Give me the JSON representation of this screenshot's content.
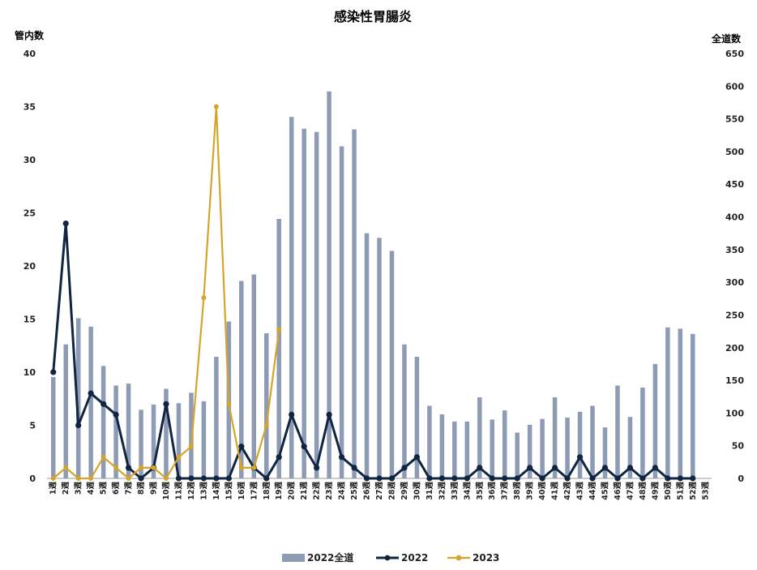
{
  "chart_data": {
    "type": "bar+line",
    "title": "感染性胃腸炎",
    "ylabel_left": "管内数",
    "ylabel_right": "全道数",
    "ylim_left": [
      0,
      40
    ],
    "ylim_right": [
      0,
      650
    ],
    "yticks_left": [
      "0",
      "5",
      "10",
      "15",
      "20",
      "25",
      "30",
      "35",
      "40"
    ],
    "yticks_right": [
      "0",
      "50",
      "100",
      "150",
      "200",
      "250",
      "300",
      "350",
      "400",
      "450",
      "500",
      "550",
      "600",
      "650"
    ],
    "categories": [
      "1週",
      "2週",
      "3週",
      "4週",
      "5週",
      "6週",
      "7週",
      "8週",
      "9週",
      "10週",
      "11週",
      "12週",
      "13週",
      "14週",
      "15週",
      "16週",
      "17週",
      "18週",
      "19週",
      "20週",
      "21週",
      "22週",
      "23週",
      "24週",
      "25週",
      "26週",
      "27週",
      "28週",
      "29週",
      "30週",
      "31週",
      "32週",
      "33週",
      "34週",
      "35週",
      "36週",
      "37週",
      "38週",
      "39週",
      "40週",
      "41週",
      "42週",
      "43週",
      "44週",
      "45週",
      "46週",
      "47週",
      "48週",
      "49週",
      "50週",
      "51週",
      "52週",
      "53週"
    ],
    "series": [
      {
        "name": "2022全道",
        "type": "bar",
        "axis": "right",
        "color": "#8e9bb5",
        "values": [
          155,
          205,
          245,
          232,
          172,
          142,
          145,
          105,
          113,
          137,
          115,
          131,
          118,
          186,
          240,
          302,
          312,
          222,
          397,
          553,
          535,
          530,
          592,
          508,
          534,
          375,
          368,
          348,
          205,
          186,
          111,
          98,
          87,
          87,
          124,
          90,
          104,
          70,
          82,
          91,
          124,
          93,
          102,
          111,
          78,
          142,
          94,
          139,
          175,
          231,
          229,
          221,
          null
        ]
      },
      {
        "name": "2022",
        "type": "line",
        "axis": "left",
        "color": "#102542",
        "values": [
          10,
          24,
          5,
          8,
          7,
          6,
          1,
          0,
          1,
          7,
          0,
          0,
          0,
          0,
          0,
          3,
          1,
          0,
          2,
          6,
          3,
          1,
          6,
          2,
          1,
          0,
          0,
          0,
          1,
          2,
          0,
          0,
          0,
          0,
          1,
          0,
          0,
          0,
          1,
          0,
          1,
          0,
          2,
          0,
          1,
          0,
          1,
          0,
          1,
          0,
          0,
          0,
          null
        ]
      },
      {
        "name": "2023",
        "type": "line",
        "axis": "left",
        "color": "#d4a52a",
        "values": [
          0,
          1,
          0,
          0,
          2,
          1,
          0,
          1,
          1,
          0,
          2,
          3,
          17,
          35,
          7,
          1,
          1,
          5,
          14,
          null,
          null,
          null,
          null,
          null,
          null,
          null,
          null,
          null,
          null,
          null,
          null,
          null,
          null,
          null,
          null,
          null,
          null,
          null,
          null,
          null,
          null,
          null,
          null,
          null,
          null,
          null,
          null,
          null,
          null,
          null,
          null,
          null,
          null
        ]
      }
    ],
    "legend_position": "bottom"
  }
}
